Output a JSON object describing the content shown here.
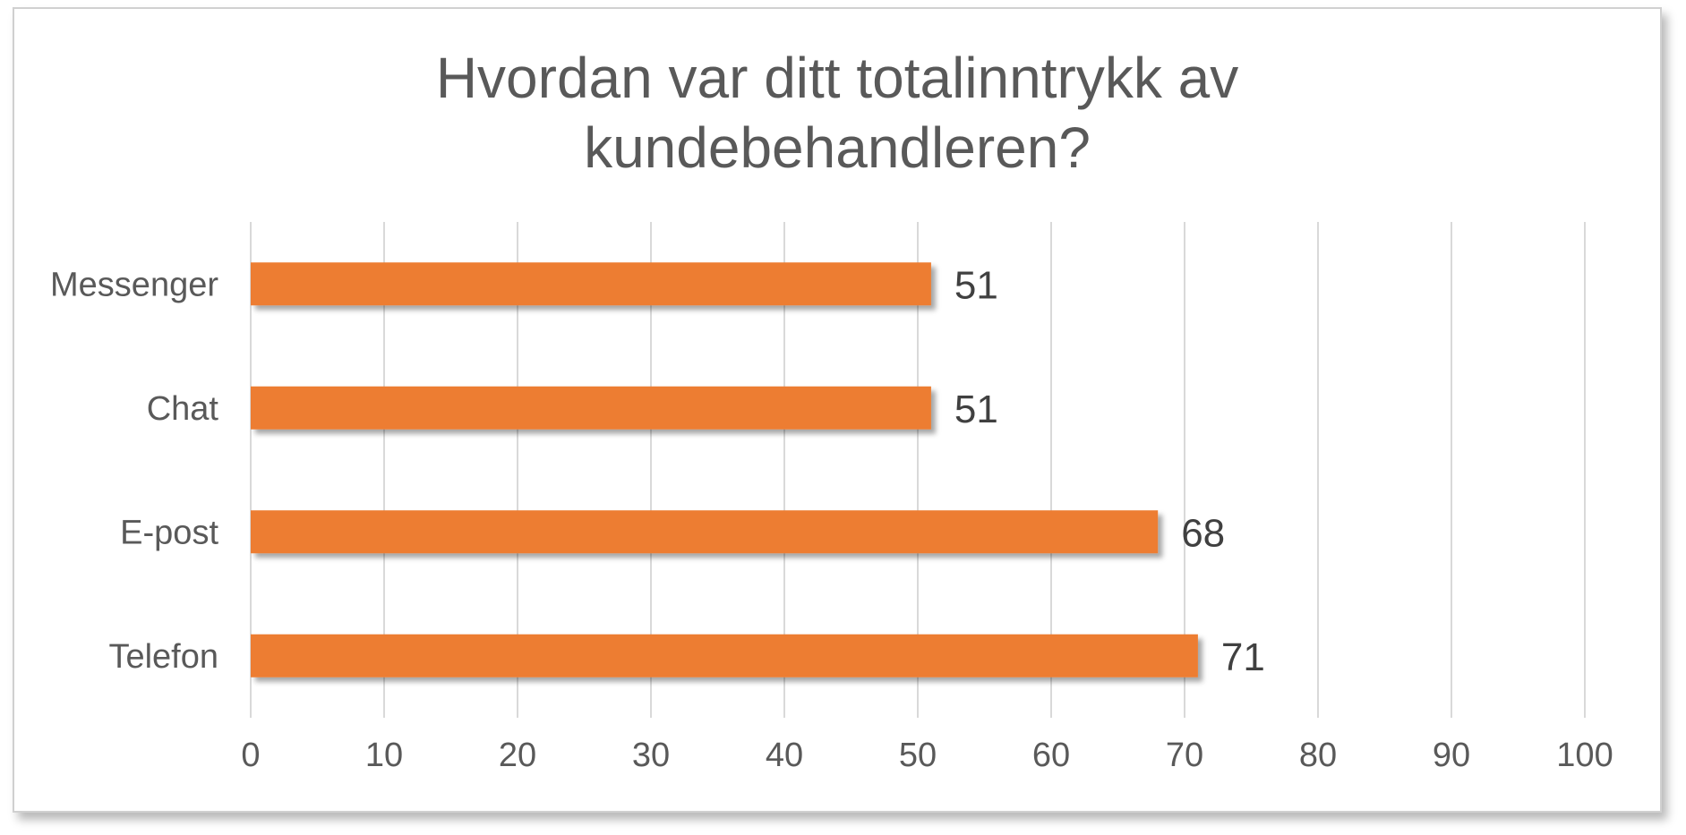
{
  "chart_data": {
    "type": "bar",
    "orientation": "horizontal",
    "title_lines": [
      "Hvordan var ditt totalinntrykk av",
      "kundebehandleren?"
    ],
    "categories": [
      "Messenger",
      "Chat",
      "E-post",
      "Telefon"
    ],
    "values": [
      51,
      51,
      68,
      71
    ],
    "xlim": [
      0,
      100
    ],
    "xticks": [
      "0",
      "10",
      "20",
      "30",
      "40",
      "50",
      "60",
      "70",
      "80",
      "90",
      "100"
    ],
    "grid": true,
    "bar_color": "#ed7d31",
    "data_labels": true
  }
}
